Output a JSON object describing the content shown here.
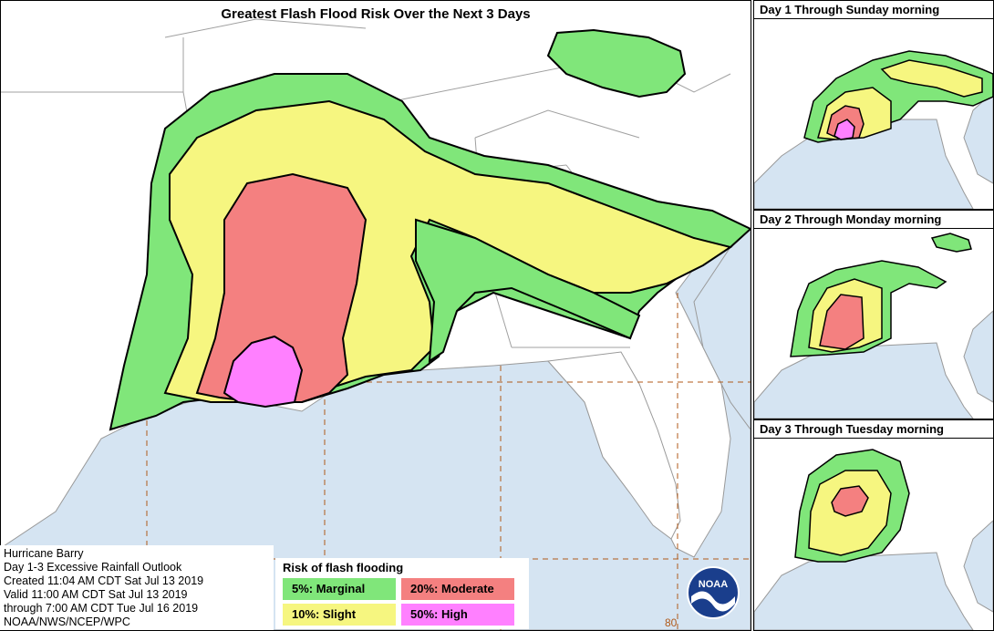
{
  "main_map": {
    "title": "Greatest Flash Flood Risk Over the Next 3 Days",
    "lon_label": "80"
  },
  "insets": [
    {
      "title": "Day 1 Through Sunday morning"
    },
    {
      "title": "Day 2 Through Monday morning"
    },
    {
      "title": "Day 3 Through Tuesday morning"
    }
  ],
  "info": {
    "line1": "Hurricane Barry",
    "line2": "Day 1-3 Excessive Rainfall Outlook",
    "line3": "Created 11:04 AM CDT Sat Jul 13 2019",
    "line4": "Valid 11:00 AM CDT Sat Jul 13 2019",
    "line5": "through 7:00 AM CDT Tue Jul 16 2019",
    "line6": "NOAA/NWS/NCEP/WPC"
  },
  "legend": {
    "title": "Risk of flash flooding",
    "items": [
      {
        "label": "5%: Marginal",
        "color": "#80e67a"
      },
      {
        "label": "20%: Moderate",
        "color": "#f48080"
      },
      {
        "label": "10%: Slight",
        "color": "#f6f680"
      },
      {
        "label": "50%: High",
        "color": "#ff80ff"
      }
    ]
  },
  "logo_text": "NOAA",
  "colors": {
    "water": "#d5e4f2",
    "land": "#ffffff",
    "marginal": "#80e67a",
    "slight": "#f6f680",
    "moderate": "#f48080",
    "high": "#ff80ff"
  }
}
